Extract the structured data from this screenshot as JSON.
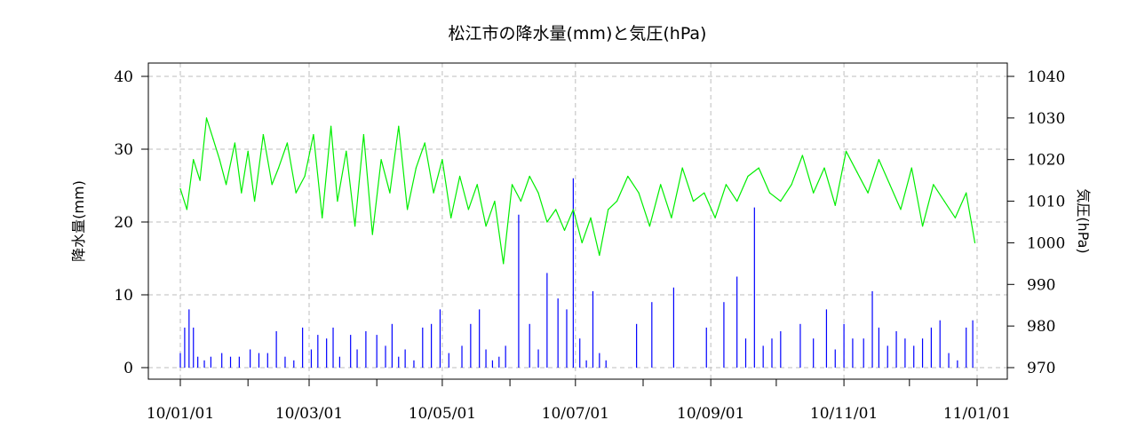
{
  "chart_data": {
    "type": "line",
    "title": "松江市の降水量(mm)と気圧(hPa)",
    "xlabel": "",
    "ylabel": "降水量(mm)",
    "y2label": "気圧(hPa)",
    "x_ticks": [
      "10/01/01",
      "10/03/01",
      "10/05/01",
      "10/07/01",
      "10/09/01",
      "10/11/01",
      "11/01/01"
    ],
    "x_range": [
      "2010-01-01",
      "2011-01-01"
    ],
    "ylim": [
      0,
      40
    ],
    "y_ticks": [
      0,
      10,
      20,
      30,
      40
    ],
    "y2lim": [
      970,
      1040
    ],
    "y2_ticks": [
      970,
      980,
      990,
      1000,
      1010,
      1020,
      1030,
      1040
    ],
    "grid": true,
    "colors": {
      "pressure": "#00ee00",
      "precipitation": "#0000ff"
    },
    "series": [
      {
        "name": "",
        "axis": "right",
        "kind": "line",
        "color": "#00ee00",
        "x": [
          "2010-01-01",
          "2010-01-04",
          "2010-01-07",
          "2010-01-10",
          "2010-01-13",
          "2010-01-16",
          "2010-01-19",
          "2010-01-22",
          "2010-01-26",
          "2010-01-29",
          "2010-02-01",
          "2010-02-04",
          "2010-02-08",
          "2010-02-12",
          "2010-02-15",
          "2010-02-19",
          "2010-02-23",
          "2010-02-27",
          "2010-03-03",
          "2010-03-07",
          "2010-03-11",
          "2010-03-14",
          "2010-03-18",
          "2010-03-22",
          "2010-03-26",
          "2010-03-30",
          "2010-04-03",
          "2010-04-07",
          "2010-04-11",
          "2010-04-15",
          "2010-04-19",
          "2010-04-23",
          "2010-04-27",
          "2010-05-01",
          "2010-05-05",
          "2010-05-09",
          "2010-05-13",
          "2010-05-17",
          "2010-05-21",
          "2010-05-25",
          "2010-05-29",
          "2010-06-02",
          "2010-06-06",
          "2010-06-10",
          "2010-06-14",
          "2010-06-18",
          "2010-06-22",
          "2010-06-26",
          "2010-06-30",
          "2010-07-04",
          "2010-07-08",
          "2010-07-12",
          "2010-07-16",
          "2010-07-20",
          "2010-07-25",
          "2010-07-30",
          "2010-08-04",
          "2010-08-09",
          "2010-08-14",
          "2010-08-19",
          "2010-08-24",
          "2010-08-29",
          "2010-09-03",
          "2010-09-08",
          "2010-09-13",
          "2010-09-18",
          "2010-09-23",
          "2010-09-28",
          "2010-10-03",
          "2010-10-08",
          "2010-10-13",
          "2010-10-18",
          "2010-10-23",
          "2010-10-28",
          "2010-11-02",
          "2010-11-07",
          "2010-11-12",
          "2010-11-17",
          "2010-11-22",
          "2010-11-27",
          "2010-12-02",
          "2010-12-07",
          "2010-12-12",
          "2010-12-17",
          "2010-12-22",
          "2010-12-27",
          "2010-12-31"
        ],
        "values": [
          1013,
          1008,
          1020,
          1015,
          1030,
          1025,
          1020,
          1014,
          1024,
          1012,
          1022,
          1010,
          1026,
          1014,
          1018,
          1024,
          1012,
          1016,
          1026,
          1006,
          1028,
          1010,
          1022,
          1004,
          1026,
          1002,
          1020,
          1012,
          1028,
          1008,
          1018,
          1024,
          1012,
          1020,
          1006,
          1016,
          1008,
          1014,
          1004,
          1010,
          995,
          1014,
          1010,
          1016,
          1012,
          1005,
          1008,
          1003,
          1008,
          1000,
          1006,
          997,
          1008,
          1010,
          1016,
          1012,
          1004,
          1014,
          1006,
          1018,
          1010,
          1012,
          1006,
          1014,
          1010,
          1016,
          1018,
          1012,
          1010,
          1014,
          1021,
          1012,
          1018,
          1009,
          1022,
          1017,
          1012,
          1020,
          1014,
          1008,
          1018,
          1004,
          1014,
          1010,
          1006,
          1012,
          1000
        ]
      },
      {
        "name": "",
        "axis": "left",
        "kind": "bar",
        "color": "#0000ff",
        "x": [
          "2010-01-01",
          "2010-01-03",
          "2010-01-05",
          "2010-01-07",
          "2010-01-09",
          "2010-01-12",
          "2010-01-15",
          "2010-01-20",
          "2010-01-24",
          "2010-01-28",
          "2010-02-02",
          "2010-02-06",
          "2010-02-10",
          "2010-02-14",
          "2010-02-18",
          "2010-02-22",
          "2010-02-26",
          "2010-03-02",
          "2010-03-05",
          "2010-03-09",
          "2010-03-12",
          "2010-03-15",
          "2010-03-20",
          "2010-03-23",
          "2010-03-27",
          "2010-04-01",
          "2010-04-05",
          "2010-04-08",
          "2010-04-11",
          "2010-04-14",
          "2010-04-18",
          "2010-04-22",
          "2010-04-26",
          "2010-04-30",
          "2010-05-04",
          "2010-05-10",
          "2010-05-14",
          "2010-05-18",
          "2010-05-21",
          "2010-05-24",
          "2010-05-27",
          "2010-05-30",
          "2010-06-05",
          "2010-06-10",
          "2010-06-14",
          "2010-06-18",
          "2010-06-23",
          "2010-06-27",
          "2010-06-30",
          "2010-07-03",
          "2010-07-06",
          "2010-07-09",
          "2010-07-12",
          "2010-07-15",
          "2010-07-29",
          "2010-08-05",
          "2010-08-15",
          "2010-08-30",
          "2010-09-07",
          "2010-09-13",
          "2010-09-17",
          "2010-09-21",
          "2010-09-25",
          "2010-09-29",
          "2010-10-03",
          "2010-10-12",
          "2010-10-18",
          "2010-10-24",
          "2010-10-28",
          "2010-11-01",
          "2010-11-05",
          "2010-11-10",
          "2010-11-14",
          "2010-11-17",
          "2010-11-21",
          "2010-11-25",
          "2010-11-29",
          "2010-12-03",
          "2010-12-07",
          "2010-12-11",
          "2010-12-15",
          "2010-12-19",
          "2010-12-23",
          "2010-12-27",
          "2010-12-30"
        ],
        "values": [
          2,
          5.5,
          8,
          5.5,
          1.5,
          1,
          1.5,
          2,
          1.5,
          1.5,
          2.5,
          2,
          2,
          5,
          1.5,
          1,
          5.5,
          2.5,
          4.5,
          4,
          5.5,
          1.5,
          4.5,
          2.5,
          5,
          4.5,
          3,
          6,
          1.5,
          2.5,
          1,
          5.5,
          6,
          8,
          2,
          3,
          6,
          8,
          2.5,
          1,
          1.5,
          3,
          21,
          6,
          2.5,
          13,
          9.5,
          8,
          26,
          4,
          1,
          10.5,
          2,
          1,
          6,
          9,
          11,
          5.5,
          9,
          12.5,
          4,
          22,
          3,
          4,
          5,
          6,
          4,
          8,
          2.5,
          6,
          4,
          4,
          10.5,
          5.5,
          3,
          5,
          4,
          3,
          4,
          5.5,
          6.5,
          2,
          1,
          5.5,
          6.5
        ]
      }
    ]
  }
}
